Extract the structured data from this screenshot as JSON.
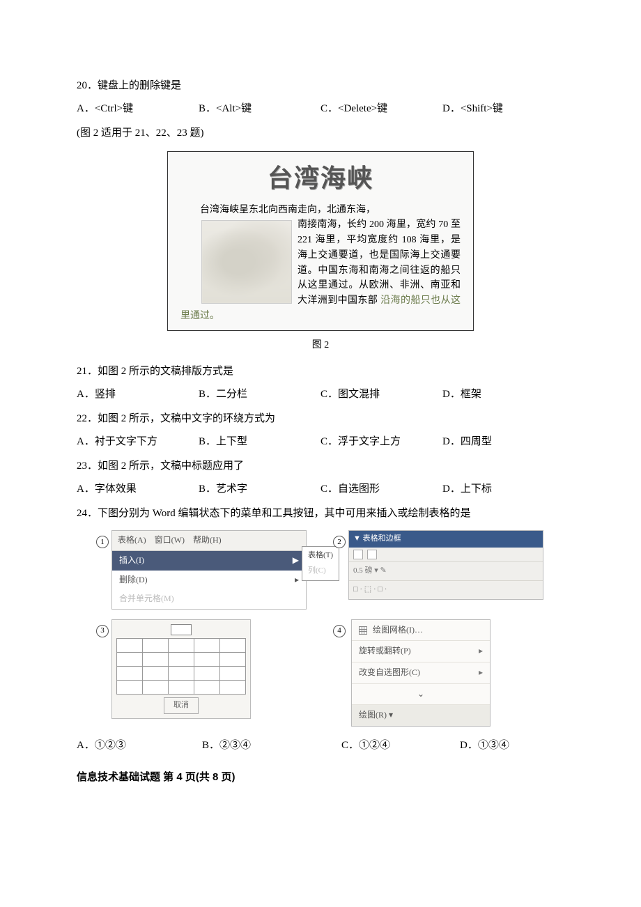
{
  "q20": {
    "text": "20．键盘上的删除键是",
    "opts": {
      "a": "A．<Ctrl>键",
      "b": "B．<Alt>键",
      "c": "C．<Delete>键",
      "d": "D．<Shift>键"
    }
  },
  "note_21_23": "(图 2 适用于 21、22、23 题)",
  "figure2": {
    "title": "台湾海峡",
    "line1": "台湾海峡呈东北向西南走向，北通东海，",
    "body_before": "南接南海，长约 200 海里，宽约 70 至 221 海里，平均宽度约 108 海里，是海上交通要道，也是国际海上交通要道。中国东海和南海之间往返的船只从这里通过。从欧洲、非洲、南亚和大洋洲到中国东部",
    "last": "沿海的船只也从这里通过。",
    "caption": "图 2"
  },
  "q21": {
    "text": "21．如图 2 所示的文稿排版方式是",
    "opts": {
      "a": "A．竖排",
      "b": "B．二分栏",
      "c": "C．图文混排",
      "d": "D．框架"
    }
  },
  "q22": {
    "text": "22．如图 2 所示，文稿中文字的环绕方式为",
    "opts": {
      "a": "A．衬于文字下方",
      "b": "B．上下型",
      "c": "C．浮于文字上方",
      "d": "D．四周型"
    }
  },
  "q23": {
    "text": "23．如图 2 所示，文稿中标题应用了",
    "opts": {
      "a": "A．字体效果",
      "b": "B．艺术字",
      "c": "C．自选图形",
      "d": "D．上下标"
    }
  },
  "q24": {
    "text": "24．下图分别为 Word 编辑状态下的菜单和工具按钮，其中可用来插入或绘制表格的是",
    "opts": {
      "a": "A．①②③",
      "b": "B．②③④",
      "c": "C．①②④",
      "d": "D．①③④"
    },
    "menu1": {
      "bar": {
        "a": "表格(A)",
        "w": "窗口(W)",
        "h": "帮助(H)"
      },
      "insert": "插入(I)",
      "sub_table": "表格(T)",
      "delete": "删除(D)",
      "sub_col": "列(C)",
      "merge": "合并单元格(M)"
    },
    "tb2": {
      "title": "▼ 表格和边框",
      "row2": "0.5 磅 ▾  ✎",
      "row3_a": "□ · ⬚ ·  □ ·"
    },
    "grid3": {
      "btn": "取消"
    },
    "draw4": {
      "grid": "绘图网格(I)…",
      "rotate": "旋转或翻转(P)",
      "change": "改变自选图形(C)",
      "draw": "绘图(R) ▾",
      "down": "⌄"
    }
  },
  "circles": {
    "c1": "1",
    "c2": "2",
    "c3": "3",
    "c4": "4"
  },
  "footer": "信息技术基础试题    第 4 页(共 8 页)"
}
